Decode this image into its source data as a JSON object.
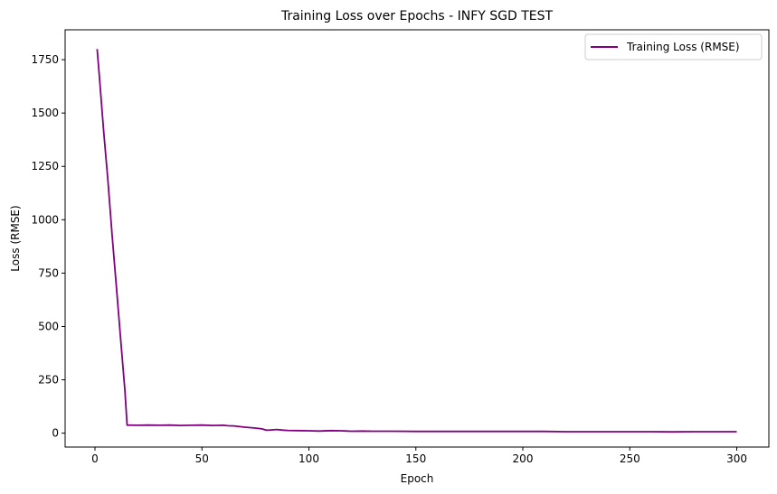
{
  "chart_data": {
    "type": "line",
    "title": "Training Loss over Epochs - INFY SGD TEST",
    "xlabel": "Epoch",
    "ylabel": "Loss (RMSE)",
    "xlim": [
      -13.95,
      315
    ],
    "ylim": [
      -65,
      1890
    ],
    "xticks": [
      0,
      50,
      100,
      150,
      200,
      250,
      300
    ],
    "yticks": [
      0,
      250,
      500,
      750,
      1000,
      1250,
      1500,
      1750
    ],
    "xtick_labels": [
      "0",
      "50",
      "100",
      "150",
      "200",
      "250",
      "300"
    ],
    "ytick_labels": [
      "0",
      "250",
      "500",
      "750",
      "1000",
      "1250",
      "1500",
      "1750"
    ],
    "grid": false,
    "legend_position": "upper right",
    "series": [
      {
        "name": "Training Loss (RMSE)",
        "color": "#800080",
        "x": [
          1,
          2,
          4,
          6,
          8,
          10,
          12,
          14,
          15,
          20,
          25,
          30,
          35,
          40,
          45,
          50,
          55,
          60,
          62,
          65,
          70,
          75,
          78,
          80,
          82,
          85,
          88,
          90,
          95,
          100,
          105,
          110,
          115,
          120,
          125,
          130,
          140,
          150,
          160,
          170,
          180,
          190,
          200,
          210,
          220,
          230,
          240,
          250,
          260,
          270,
          280,
          290,
          300
        ],
        "y": [
          1800,
          1680,
          1420,
          1190,
          930,
          690,
          440,
          200,
          38,
          37,
          38,
          37,
          38,
          36,
          37,
          38,
          36,
          37,
          35,
          34,
          28,
          24,
          20,
          14,
          15,
          17,
          14,
          13,
          12,
          11,
          10,
          12,
          11,
          9,
          10,
          9,
          9,
          8,
          8,
          8,
          8,
          8,
          8,
          8,
          7,
          7,
          7,
          7,
          7,
          6,
          7,
          7,
          7
        ]
      }
    ]
  }
}
